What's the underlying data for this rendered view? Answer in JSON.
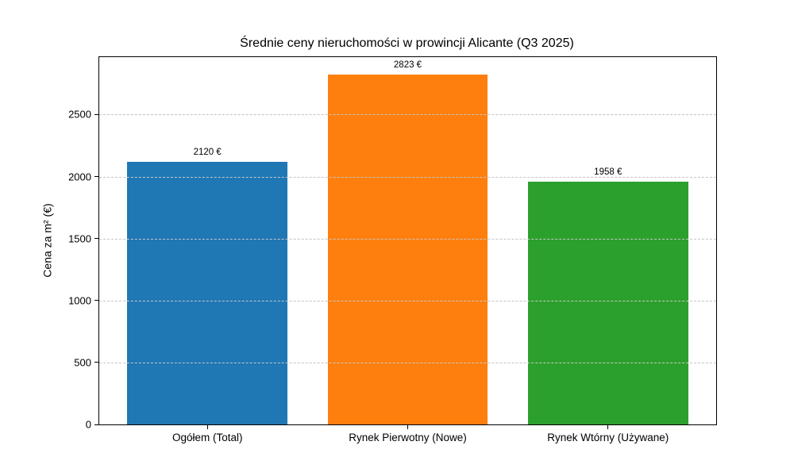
{
  "chart_data": {
    "type": "bar",
    "title": "Średnie ceny nieruchomości w prowincji Alicante (Q3 2025)",
    "ylabel": "Cena za m² (€)",
    "xlabel": "",
    "categories": [
      "Ogółem (Total)",
      "Rynek Pierwotny (Nowe)",
      "Rynek Wtórny (Używane)"
    ],
    "values": [
      2120,
      2823,
      1958
    ],
    "value_labels": [
      "2120 €",
      "2823 €",
      "1958 €"
    ],
    "bar_colors": [
      "#1f77b4",
      "#ff7f0e",
      "#2ca02c"
    ],
    "yticks": [
      0,
      500,
      1000,
      1500,
      2000,
      2500
    ],
    "ylim": [
      0,
      2964
    ],
    "grid": "horizontal-dashed-over-bars",
    "legend": "none",
    "spine_color": "#000000",
    "grid_color": "#c6c6c6"
  }
}
